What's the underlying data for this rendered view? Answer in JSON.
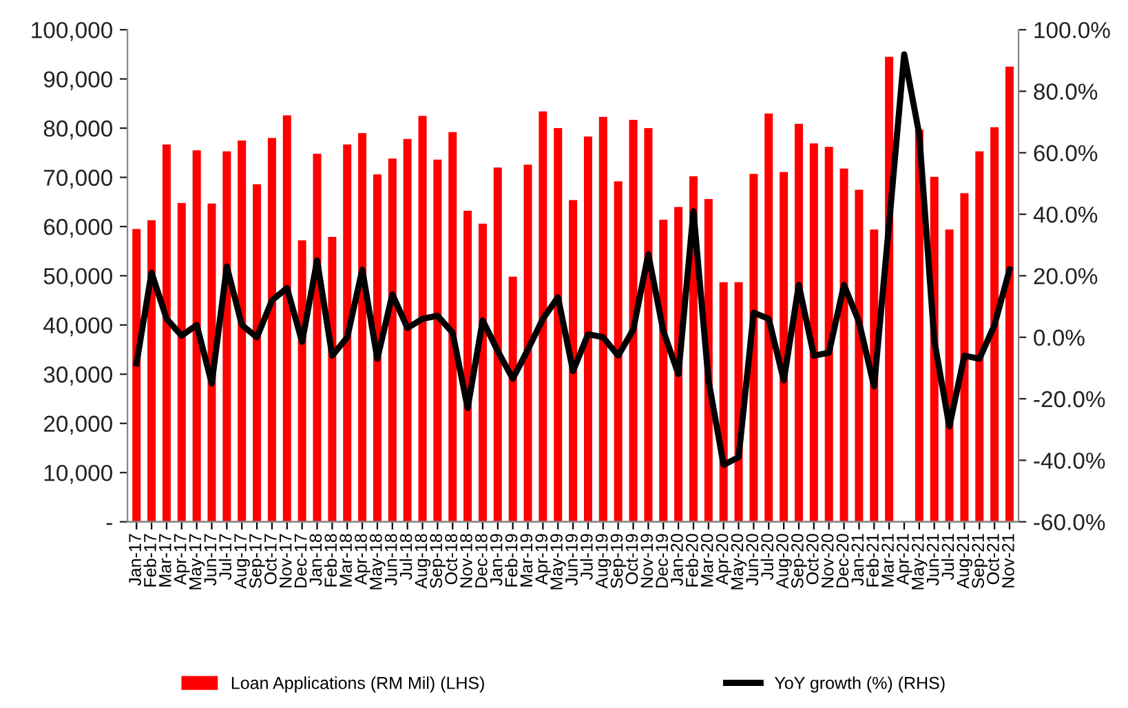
{
  "chart_data": {
    "type": "bar",
    "categories": [
      "Jan-17",
      "Feb-17",
      "Mar-17",
      "Apr-17",
      "May-17",
      "Jun-17",
      "Jul-17",
      "Aug-17",
      "Sep-17",
      "Oct-17",
      "Nov-17",
      "Dec-17",
      "Jan-18",
      "Feb-18",
      "Mar-18",
      "Apr-18",
      "May-18",
      "Jun-18",
      "Jul-18",
      "Aug-18",
      "Sep-18",
      "Oct-18",
      "Nov-18",
      "Dec-18",
      "Jan-19",
      "Feb-19",
      "Mar-19",
      "Apr-19",
      "May-19",
      "Jun-19",
      "Jul-19",
      "Aug-19",
      "Sep-19",
      "Oct-19",
      "Nov-19",
      "Dec-19",
      "Jan-20",
      "Feb-20",
      "Mar-20",
      "Apr-20",
      "May-20",
      "Jun-20",
      "Jul-20",
      "Aug-20",
      "Sep-20",
      "Oct-20",
      "Nov-20",
      "Dec-20",
      "Jan-21",
      "Feb-21",
      "Mar-21",
      "Apr-21",
      "May-21",
      "Jun-21",
      "Jul-21",
      "Aug-21",
      "Sep-21",
      "Oct-21",
      "Nov-21"
    ],
    "series": [
      {
        "name": "Loan Applications (RM Mil) (LHS)",
        "color": "#ff0000",
        "values": [
          59500,
          61300,
          76700,
          64800,
          75500,
          64700,
          75300,
          77500,
          68600,
          78000,
          82600,
          57200,
          74800,
          57900,
          76700,
          79000,
          70600,
          73800,
          77800,
          82500,
          73600,
          79200,
          63200,
          60600,
          72000,
          49800,
          72600,
          83400,
          80000,
          65400,
          78300,
          82300,
          69200,
          81700,
          80000,
          61400,
          64000,
          70200,
          65600,
          48700,
          48700,
          70700,
          83000,
          71100,
          80900,
          76900,
          76200,
          71800,
          67500,
          59400,
          94500,
          null,
          79700,
          70100,
          59400,
          66800,
          75300,
          80200,
          92500
        ]
      },
      {
        "name": "YoY growth (%) (RHS)",
        "type": "line",
        "axis": "y2",
        "color": "#000000",
        "values": [
          -8.5,
          21,
          6,
          0.5,
          4,
          -15,
          23,
          4,
          0,
          12,
          16,
          -1.5,
          25,
          -6,
          0,
          22,
          -7,
          14,
          3,
          6,
          7,
          1.5,
          -23,
          5.5,
          -4.5,
          -13.5,
          -4,
          6,
          13,
          -11,
          1,
          0,
          -6,
          2.5,
          27,
          2,
          -12,
          41,
          -14,
          -41.5,
          -39,
          8,
          6,
          -14,
          17,
          -6,
          -5,
          17,
          5,
          -16,
          37,
          92,
          66,
          -1,
          -29,
          -6,
          -7,
          4,
          22
        ]
      }
    ],
    "ylim": [
      0,
      100000
    ],
    "yticks": [
      {
        "value": 0,
        "label": "-"
      },
      {
        "value": 10000,
        "label": "10,000"
      },
      {
        "value": 20000,
        "label": "20,000"
      },
      {
        "value": 30000,
        "label": "30,000"
      },
      {
        "value": 40000,
        "label": "40,000"
      },
      {
        "value": 50000,
        "label": "50,000"
      },
      {
        "value": 60000,
        "label": "60,000"
      },
      {
        "value": 70000,
        "label": "70,000"
      },
      {
        "value": 80000,
        "label": "80,000"
      },
      {
        "value": 90000,
        "label": "90,000"
      },
      {
        "value": 100000,
        "label": "100,000"
      }
    ],
    "y2lim": [
      -60,
      100
    ],
    "y2ticks": [
      {
        "value": -60,
        "label": "-60.0%"
      },
      {
        "value": -40,
        "label": "-40.0%"
      },
      {
        "value": -20,
        "label": "-20.0%"
      },
      {
        "value": 0,
        "label": "0.0%"
      },
      {
        "value": 20,
        "label": "20.0%"
      },
      {
        "value": 40,
        "label": "40.0%"
      },
      {
        "value": 60,
        "label": "60.0%"
      },
      {
        "value": 80,
        "label": "80.0%"
      },
      {
        "value": 100,
        "label": "100.0%"
      }
    ],
    "legend": "bottom",
    "grid": false
  }
}
